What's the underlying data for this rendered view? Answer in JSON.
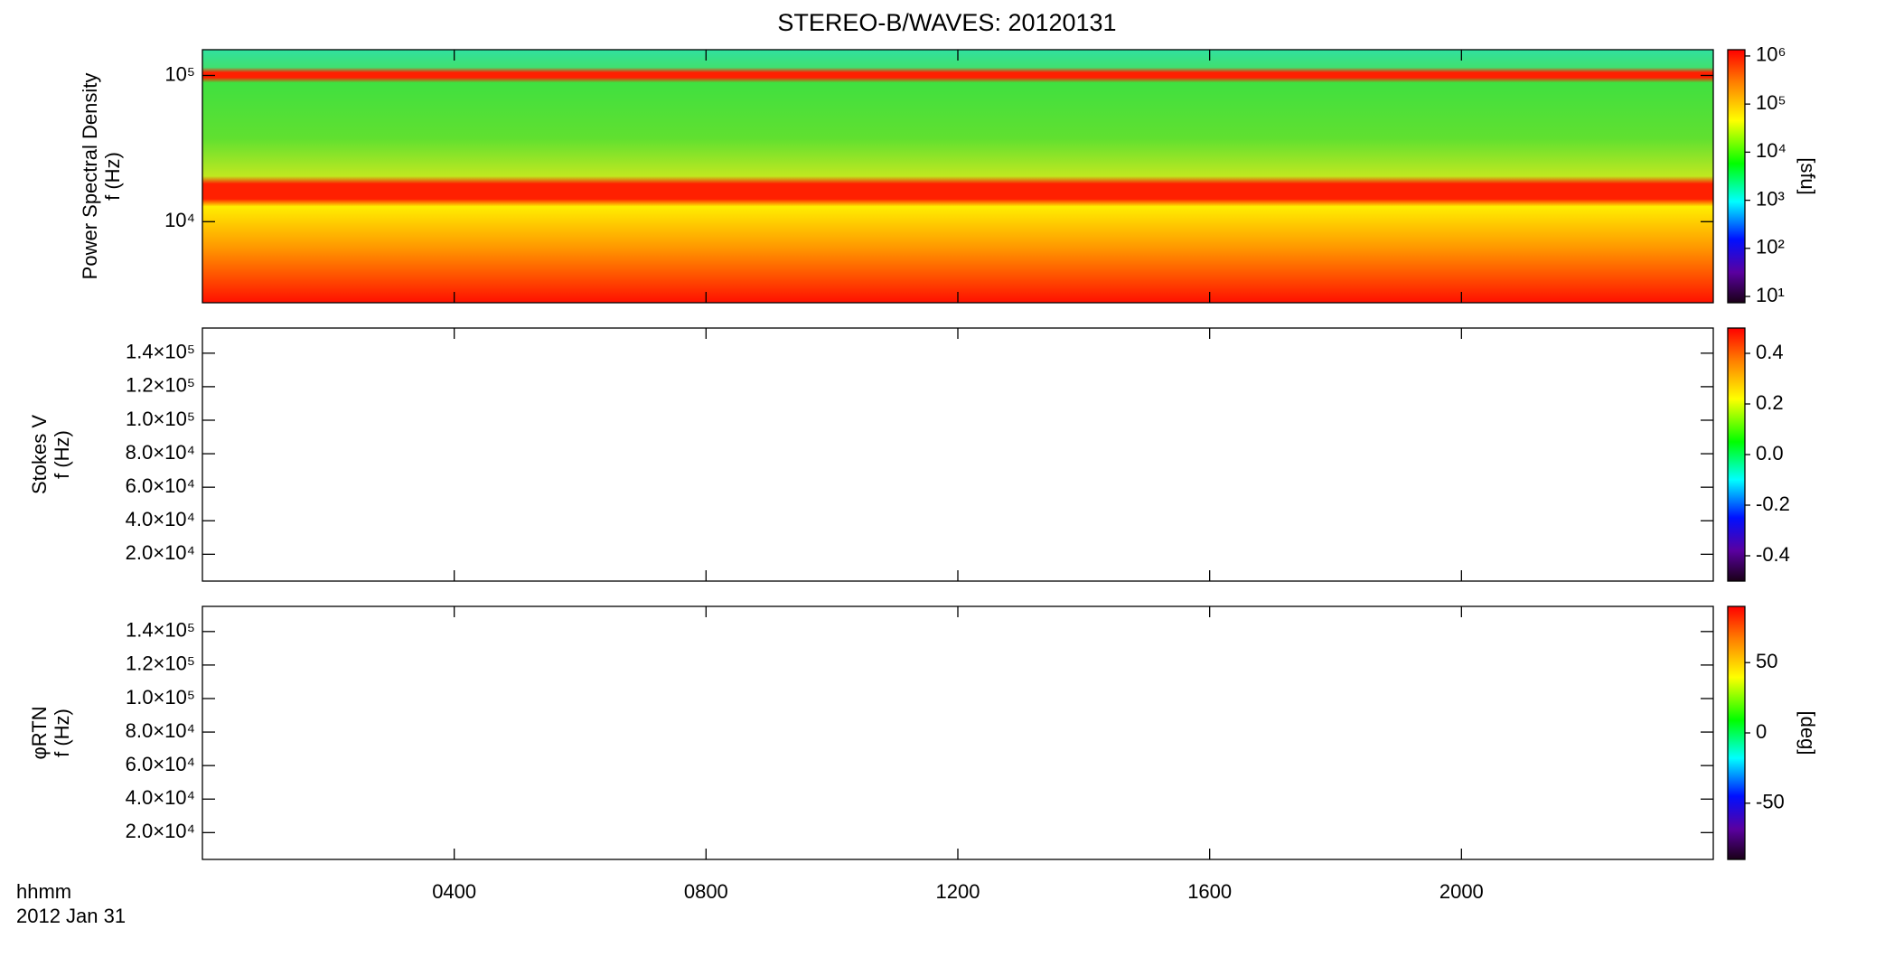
{
  "chart_data": [
    {
      "type": "spectrogram",
      "title": "STEREO-B/WAVES: 20120131",
      "ylabel": [
        "Power Spectral Density",
        "f (Hz)"
      ],
      "log_y": true,
      "ylim": [
        2790,
        150000
      ],
      "yticks": [
        {
          "value": 10000,
          "label": "10⁴"
        },
        {
          "value": 100000,
          "label": "10⁵"
        }
      ],
      "colorbar": {
        "log": true,
        "clim": [
          7.4,
          1350000
        ],
        "label": "[sfu]",
        "ticks": [
          {
            "value": 10,
            "label": "10¹"
          },
          {
            "value": 100,
            "label": "10²"
          },
          {
            "value": 1000,
            "label": "10³"
          },
          {
            "value": 10000,
            "label": "10⁴"
          },
          {
            "value": 100000,
            "label": "10⁵"
          },
          {
            "value": 1000000,
            "label": "10⁶"
          }
        ]
      }
    },
    {
      "type": "spectrogram",
      "ylabel": [
        "Stokes V",
        "f (Hz)"
      ],
      "log_y": false,
      "ylim": [
        4000,
        155000
      ],
      "yticks": [
        {
          "value": 20000,
          "label": "2.0×10⁴"
        },
        {
          "value": 40000,
          "label": "4.0×10⁴"
        },
        {
          "value": 60000,
          "label": "6.0×10⁴"
        },
        {
          "value": 80000,
          "label": "8.0×10⁴"
        },
        {
          "value": 100000,
          "label": "1.0×10⁵"
        },
        {
          "value": 120000,
          "label": "1.2×10⁵"
        },
        {
          "value": 140000,
          "label": "1.4×10⁵"
        }
      ],
      "colorbar": {
        "log": false,
        "clim": [
          -0.5,
          0.5
        ],
        "ticks": [
          -0.4,
          -0.2,
          {
            "value": 0,
            "label": "0.0"
          },
          0.2,
          0.4
        ]
      }
    },
    {
      "type": "spectrogram",
      "ylabel": [
        "φRTN",
        "f (Hz)"
      ],
      "log_y": false,
      "ylim": [
        4000,
        155000
      ],
      "yticks": [
        {
          "value": 20000,
          "label": "2.0×10⁴"
        },
        {
          "value": 40000,
          "label": "4.0×10⁴"
        },
        {
          "value": 60000,
          "label": "6.0×10⁴"
        },
        {
          "value": 80000,
          "label": "8.0×10⁴"
        },
        {
          "value": 100000,
          "label": "1.0×10⁵"
        },
        {
          "value": 120000,
          "label": "1.2×10⁵"
        },
        {
          "value": 140000,
          "label": "1.4×10⁵"
        }
      ],
      "colorbar": {
        "log": false,
        "clim": [
          -90,
          90
        ],
        "label": "[deg]",
        "ticks": [
          -50,
          0,
          50
        ]
      },
      "xlabel": [
        "hhmm",
        "2012 Jan 31"
      ],
      "xlim": [
        0,
        24
      ],
      "xticks": [
        {
          "value": 4,
          "label": "0400"
        },
        {
          "value": 8,
          "label": "0800"
        },
        {
          "value": 12,
          "label": "1200"
        },
        {
          "value": 16,
          "label": "1600"
        },
        {
          "value": 20,
          "label": "2000"
        }
      ]
    }
  ]
}
